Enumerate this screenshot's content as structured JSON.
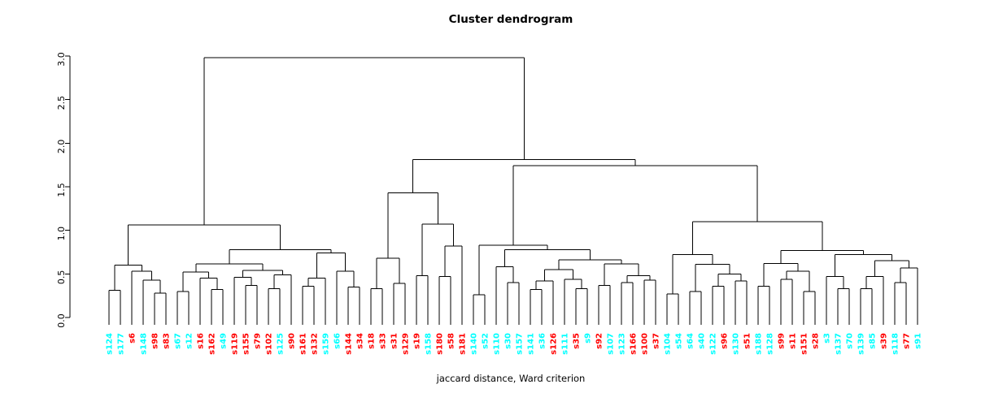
{
  "title": "Cluster dendrogram",
  "xlabel": "jaccard distance, Ward criterion",
  "chart_data": {
    "type": "dendrogram",
    "title": "Cluster dendrogram",
    "xlabel": "jaccard distance, Ward criterion",
    "ylabel": "",
    "ylim": [
      0,
      3
    ],
    "yticks": [
      "0.0",
      "0.5",
      "1.0",
      "1.5",
      "2.0",
      "2.5",
      "3.0"
    ],
    "grid": false,
    "line_color": "#000000",
    "colors": {
      "c": "#00ffff",
      "r": "#ff0000"
    },
    "leaves": [
      {
        "label": "s124",
        "color": "c"
      },
      {
        "label": "s177",
        "color": "c"
      },
      {
        "label": "s6",
        "color": "r"
      },
      {
        "label": "s148",
        "color": "c"
      },
      {
        "label": "s98",
        "color": "r"
      },
      {
        "label": "s83",
        "color": "r"
      },
      {
        "label": "s67",
        "color": "c"
      },
      {
        "label": "s12",
        "color": "c"
      },
      {
        "label": "s16",
        "color": "r"
      },
      {
        "label": "s162",
        "color": "r"
      },
      {
        "label": "s49",
        "color": "c"
      },
      {
        "label": "s119",
        "color": "r"
      },
      {
        "label": "s155",
        "color": "r"
      },
      {
        "label": "s79",
        "color": "r"
      },
      {
        "label": "s102",
        "color": "r"
      },
      {
        "label": "s125",
        "color": "c"
      },
      {
        "label": "s90",
        "color": "r"
      },
      {
        "label": "s161",
        "color": "r"
      },
      {
        "label": "s132",
        "color": "r"
      },
      {
        "label": "s159",
        "color": "c"
      },
      {
        "label": "s66",
        "color": "c"
      },
      {
        "label": "s144",
        "color": "r"
      },
      {
        "label": "s34",
        "color": "r"
      },
      {
        "label": "s18",
        "color": "r"
      },
      {
        "label": "s33",
        "color": "r"
      },
      {
        "label": "s31",
        "color": "r"
      },
      {
        "label": "s129",
        "color": "r"
      },
      {
        "label": "s19",
        "color": "r"
      },
      {
        "label": "s158",
        "color": "c"
      },
      {
        "label": "s180",
        "color": "r"
      },
      {
        "label": "s58",
        "color": "r"
      },
      {
        "label": "s181",
        "color": "r"
      },
      {
        "label": "s140",
        "color": "c"
      },
      {
        "label": "s52",
        "color": "c"
      },
      {
        "label": "s110",
        "color": "c"
      },
      {
        "label": "s30",
        "color": "c"
      },
      {
        "label": "s157",
        "color": "c"
      },
      {
        "label": "s141",
        "color": "c"
      },
      {
        "label": "s36",
        "color": "c"
      },
      {
        "label": "s126",
        "color": "r"
      },
      {
        "label": "s111",
        "color": "c"
      },
      {
        "label": "s35",
        "color": "r"
      },
      {
        "label": "s9",
        "color": "c"
      },
      {
        "label": "s92",
        "color": "r"
      },
      {
        "label": "s107",
        "color": "c"
      },
      {
        "label": "s123",
        "color": "c"
      },
      {
        "label": "s166",
        "color": "r"
      },
      {
        "label": "s100",
        "color": "r"
      },
      {
        "label": "s37",
        "color": "r"
      },
      {
        "label": "s104",
        "color": "c"
      },
      {
        "label": "s54",
        "color": "c"
      },
      {
        "label": "s64",
        "color": "c"
      },
      {
        "label": "s40",
        "color": "c"
      },
      {
        "label": "s122",
        "color": "c"
      },
      {
        "label": "s96",
        "color": "r"
      },
      {
        "label": "s130",
        "color": "c"
      },
      {
        "label": "s51",
        "color": "r"
      },
      {
        "label": "s188",
        "color": "c"
      },
      {
        "label": "s128",
        "color": "c"
      },
      {
        "label": "s99",
        "color": "r"
      },
      {
        "label": "s11",
        "color": "r"
      },
      {
        "label": "s151",
        "color": "r"
      },
      {
        "label": "s28",
        "color": "r"
      },
      {
        "label": "s3",
        "color": "c"
      },
      {
        "label": "s137",
        "color": "c"
      },
      {
        "label": "s70",
        "color": "c"
      },
      {
        "label": "s139",
        "color": "c"
      },
      {
        "label": "s85",
        "color": "c"
      },
      {
        "label": "s39",
        "color": "r"
      },
      {
        "label": "s118",
        "color": "c"
      },
      {
        "label": "s77",
        "color": "r"
      },
      {
        "label": "s91",
        "color": "c"
      }
    ],
    "tree": {
      "h": 2.98,
      "c": [
        {
          "h": 1.06,
          "c": [
            {
              "h": 0.6,
              "c": [
                {
                  "h": 0.31,
                  "c": [
                    "s124",
                    "s177"
                  ]
                },
                {
                  "h": 0.53,
                  "c": [
                    "s6",
                    {
                      "h": 0.43,
                      "c": [
                        "s148",
                        {
                          "h": 0.28,
                          "c": [
                            "s98",
                            "s83"
                          ]
                        }
                      ]
                    }
                  ]
                }
              ]
            },
            {
              "h": 0.78,
              "c": [
                {
                  "h": 0.615,
                  "c": [
                    {
                      "h": 0.52,
                      "c": [
                        {
                          "h": 0.3,
                          "c": [
                            "s67",
                            "s12"
                          ]
                        },
                        {
                          "h": 0.45,
                          "c": [
                            "s16",
                            {
                              "h": 0.32,
                              "c": [
                                "s162",
                                "s49"
                              ]
                            }
                          ]
                        }
                      ]
                    },
                    {
                      "h": 0.54,
                      "c": [
                        {
                          "h": 0.46,
                          "c": [
                            "s119",
                            {
                              "h": 0.37,
                              "c": [
                                "s155",
                                "s79"
                              ]
                            }
                          ]
                        },
                        {
                          "h": 0.49,
                          "c": [
                            {
                              "h": 0.33,
                              "c": [
                                "s102",
                                "s125"
                              ]
                            },
                            "s90"
                          ]
                        }
                      ]
                    }
                  ]
                },
                {
                  "h": 0.74,
                  "c": [
                    {
                      "h": 0.45,
                      "c": [
                        {
                          "h": 0.36,
                          "c": [
                            "s161",
                            "s132"
                          ]
                        },
                        "s159"
                      ]
                    },
                    {
                      "h": 0.53,
                      "c": [
                        "s66",
                        {
                          "h": 0.35,
                          "c": [
                            "s144",
                            "s34"
                          ]
                        }
                      ]
                    }
                  ]
                }
              ]
            }
          ]
        },
        {
          "h": 1.81,
          "c": [
            {
              "h": 1.43,
              "c": [
                {
                  "h": 0.68,
                  "c": [
                    {
                      "h": 0.33,
                      "c": [
                        "s18",
                        "s33"
                      ]
                    },
                    {
                      "h": 0.39,
                      "c": [
                        "s31",
                        "s129"
                      ]
                    }
                  ]
                },
                {
                  "h": 1.07,
                  "c": [
                    {
                      "h": 0.48,
                      "c": [
                        "s19",
                        "s158"
                      ]
                    },
                    {
                      "h": 0.82,
                      "c": [
                        {
                          "h": 0.47,
                          "c": [
                            "s180",
                            "s58"
                          ]
                        },
                        "s181"
                      ]
                    }
                  ]
                }
              ]
            },
            {
              "h": 1.74,
              "c": [
                {
                  "h": 0.83,
                  "c": [
                    {
                      "h": 0.26,
                      "c": [
                        "s140",
                        "s52"
                      ]
                    },
                    {
                      "h": 0.78,
                      "c": [
                        {
                          "h": 0.58,
                          "c": [
                            "s110",
                            {
                              "h": 0.4,
                              "c": [
                                "s30",
                                "s157"
                              ]
                            }
                          ]
                        },
                        {
                          "h": 0.66,
                          "c": [
                            {
                              "h": 0.55,
                              "c": [
                                {
                                  "h": 0.42,
                                  "c": [
                                    {
                                      "h": 0.32,
                                      "c": [
                                        "s141",
                                        "s36"
                                      ]
                                    },
                                    "s126"
                                  ]
                                },
                                {
                                  "h": 0.44,
                                  "c": [
                                    "s111",
                                    {
                                      "h": 0.33,
                                      "c": [
                                        "s35",
                                        "s9"
                                      ]
                                    }
                                  ]
                                }
                              ]
                            },
                            {
                              "h": 0.615,
                              "c": [
                                {
                                  "h": 0.37,
                                  "c": [
                                    "s92",
                                    "s107"
                                  ]
                                },
                                {
                                  "h": 0.48,
                                  "c": [
                                    {
                                      "h": 0.4,
                                      "c": [
                                        "s123",
                                        "s166"
                                      ]
                                    },
                                    {
                                      "h": 0.43,
                                      "c": [
                                        "s100",
                                        "s37"
                                      ]
                                    }
                                  ]
                                }
                              ]
                            }
                          ]
                        }
                      ]
                    }
                  ]
                },
                {
                  "h": 1.1,
                  "c": [
                    {
                      "h": 0.72,
                      "c": [
                        {
                          "h": 0.27,
                          "c": [
                            "s104",
                            "s54"
                          ]
                        },
                        {
                          "h": 0.61,
                          "c": [
                            {
                              "h": 0.3,
                              "c": [
                                "s64",
                                "s40"
                              ]
                            },
                            {
                              "h": 0.5,
                              "c": [
                                {
                                  "h": 0.36,
                                  "c": [
                                    "s122",
                                    "s96"
                                  ]
                                },
                                {
                                  "h": 0.42,
                                  "c": [
                                    "s130",
                                    "s51"
                                  ]
                                }
                              ]
                            }
                          ]
                        }
                      ]
                    },
                    {
                      "h": 0.77,
                      "c": [
                        {
                          "h": 0.62,
                          "c": [
                            {
                              "h": 0.36,
                              "c": [
                                "s188",
                                "s128"
                              ]
                            },
                            {
                              "h": 0.53,
                              "c": [
                                {
                                  "h": 0.44,
                                  "c": [
                                    "s99",
                                    "s11"
                                  ]
                                },
                                {
                                  "h": 0.3,
                                  "c": [
                                    "s151",
                                    "s28"
                                  ]
                                }
                              ]
                            }
                          ]
                        },
                        {
                          "h": 0.72,
                          "c": [
                            {
                              "h": 0.47,
                              "c": [
                                "s3",
                                {
                                  "h": 0.33,
                                  "c": [
                                    "s137",
                                    "s70"
                                  ]
                                }
                              ]
                            },
                            {
                              "h": 0.65,
                              "c": [
                                {
                                  "h": 0.47,
                                  "c": [
                                    {
                                      "h": 0.33,
                                      "c": [
                                        "s139",
                                        "s85"
                                      ]
                                    },
                                    "s39"
                                  ]
                                },
                                {
                                  "h": 0.57,
                                  "c": [
                                    {
                                      "h": 0.4,
                                      "c": [
                                        "s118",
                                        "s77"
                                      ]
                                    },
                                    "s91"
                                  ]
                                }
                              ]
                            }
                          ]
                        }
                      ]
                    }
                  ]
                }
              ]
            }
          ]
        }
      ]
    }
  }
}
